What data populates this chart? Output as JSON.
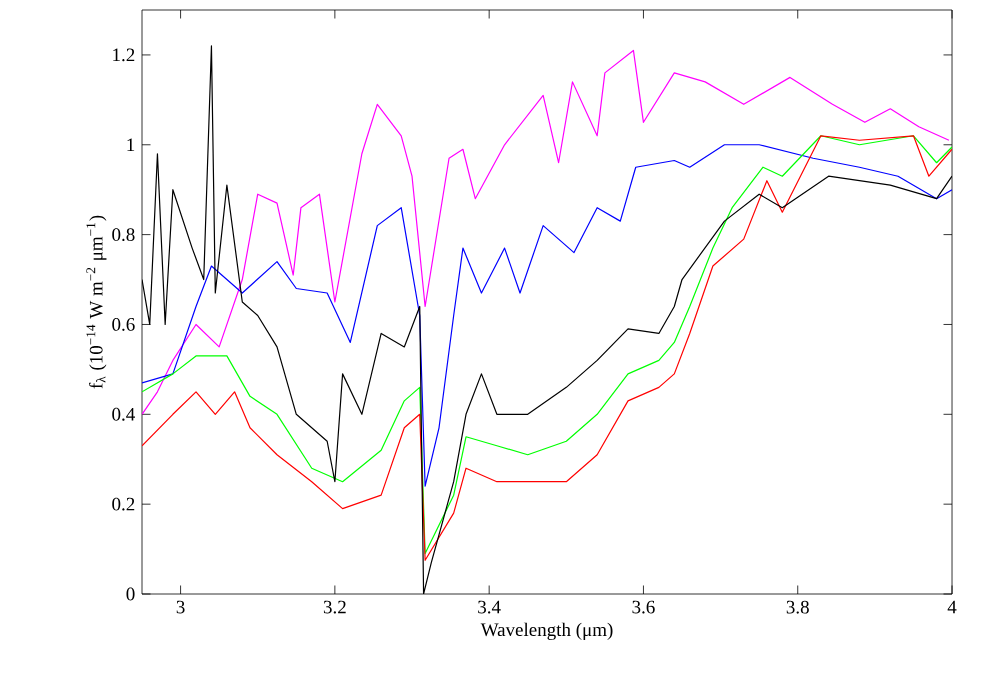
{
  "chart_data": {
    "type": "line",
    "xlabel": "Wavelength (μm)",
    "ylabel": "f$_{λ}$ (10$^{−14}$ W m$^{−2}$ μm$^{−1}$)",
    "xlim": [
      2.95,
      4
    ],
    "ylim": [
      0,
      1.3
    ],
    "xticks": [
      3,
      3.2,
      3.4,
      3.6,
      3.8,
      4
    ],
    "yticks": [
      0,
      0.2,
      0.4,
      0.6,
      0.8,
      1,
      1.2
    ],
    "grid": false,
    "legend": false,
    "marker": "none",
    "line_style": "solid",
    "series": [
      {
        "color": "#ff00ff",
        "x": [
          2.95,
          2.97,
          2.99,
          3.02,
          3.05,
          3.08,
          3.1,
          3.125,
          3.146,
          3.156,
          3.18,
          3.2,
          3.235,
          3.255,
          3.286,
          3.3,
          3.317,
          3.348,
          3.366,
          3.382,
          3.42,
          3.47,
          3.49,
          3.508,
          3.54,
          3.55,
          3.587,
          3.6,
          3.64,
          3.68,
          3.73,
          3.79,
          3.845,
          3.887,
          3.92,
          3.957,
          3.996
        ],
        "values": [
          0.4,
          0.45,
          0.52,
          0.6,
          0.55,
          0.7,
          0.89,
          0.87,
          0.71,
          0.86,
          0.89,
          0.65,
          0.98,
          1.09,
          1.02,
          0.93,
          0.64,
          0.97,
          0.99,
          0.88,
          1.0,
          1.11,
          0.96,
          1.14,
          1.02,
          1.16,
          1.21,
          1.05,
          1.16,
          1.14,
          1.09,
          1.15,
          1.09,
          1.05,
          1.08,
          1.04,
          1.01
        ]
      },
      {
        "color": "#0000ff",
        "x": [
          2.95,
          2.99,
          3.02,
          3.04,
          3.06,
          3.08,
          3.125,
          3.15,
          3.19,
          3.22,
          3.255,
          3.286,
          3.31,
          3.317,
          3.335,
          3.354,
          3.366,
          3.39,
          3.42,
          3.44,
          3.47,
          3.51,
          3.54,
          3.57,
          3.59,
          3.64,
          3.66,
          3.705,
          3.75,
          3.82,
          3.88,
          3.93,
          3.98,
          4.0
        ],
        "values": [
          0.47,
          0.49,
          0.64,
          0.73,
          0.7,
          0.67,
          0.74,
          0.68,
          0.67,
          0.56,
          0.82,
          0.86,
          0.62,
          0.24,
          0.37,
          0.62,
          0.77,
          0.67,
          0.77,
          0.67,
          0.82,
          0.76,
          0.86,
          0.83,
          0.95,
          0.965,
          0.95,
          1.0,
          1.0,
          0.97,
          0.95,
          0.93,
          0.88,
          0.9
        ]
      },
      {
        "color": "#00ff00",
        "x": [
          2.95,
          2.99,
          3.02,
          3.06,
          3.09,
          3.125,
          3.17,
          3.21,
          3.26,
          3.29,
          3.31,
          3.317,
          3.354,
          3.37,
          3.41,
          3.45,
          3.5,
          3.54,
          3.58,
          3.62,
          3.64,
          3.66,
          3.69,
          3.715,
          3.755,
          3.78,
          3.83,
          3.88,
          3.95,
          3.98,
          4.0
        ],
        "values": [
          0.45,
          0.49,
          0.53,
          0.53,
          0.44,
          0.4,
          0.28,
          0.25,
          0.32,
          0.43,
          0.46,
          0.09,
          0.22,
          0.35,
          0.33,
          0.31,
          0.34,
          0.4,
          0.49,
          0.52,
          0.56,
          0.64,
          0.77,
          0.86,
          0.95,
          0.93,
          1.02,
          1.0,
          1.02,
          0.96,
          0.995
        ]
      },
      {
        "color": "#ff0000",
        "x": [
          2.95,
          2.99,
          3.02,
          3.045,
          3.07,
          3.09,
          3.125,
          3.17,
          3.21,
          3.26,
          3.29,
          3.31,
          3.317,
          3.354,
          3.37,
          3.41,
          3.45,
          3.5,
          3.54,
          3.58,
          3.62,
          3.64,
          3.66,
          3.69,
          3.73,
          3.76,
          3.78,
          3.83,
          3.88,
          3.95,
          3.97,
          4.0
        ],
        "values": [
          0.33,
          0.4,
          0.45,
          0.4,
          0.45,
          0.37,
          0.31,
          0.25,
          0.19,
          0.22,
          0.37,
          0.4,
          0.075,
          0.18,
          0.28,
          0.25,
          0.25,
          0.25,
          0.31,
          0.43,
          0.46,
          0.49,
          0.58,
          0.73,
          0.79,
          0.92,
          0.85,
          1.02,
          1.01,
          1.02,
          0.93,
          0.99
        ]
      },
      {
        "color": "#000000",
        "x": [
          2.95,
          2.96,
          2.97,
          2.98,
          2.99,
          3.015,
          3.03,
          3.04,
          3.045,
          3.06,
          3.08,
          3.1,
          3.125,
          3.15,
          3.19,
          3.2,
          3.21,
          3.235,
          3.26,
          3.29,
          3.31,
          3.315,
          3.325,
          3.354,
          3.37,
          3.39,
          3.41,
          3.45,
          3.5,
          3.54,
          3.58,
          3.62,
          3.64,
          3.65,
          3.705,
          3.75,
          3.78,
          3.84,
          3.88,
          3.92,
          3.98,
          4.0
        ],
        "values": [
          0.7,
          0.6,
          0.98,
          0.6,
          0.9,
          0.77,
          0.7,
          1.22,
          0.67,
          0.91,
          0.65,
          0.62,
          0.55,
          0.4,
          0.34,
          0.25,
          0.49,
          0.4,
          0.58,
          0.55,
          0.64,
          0.0,
          0.07,
          0.25,
          0.4,
          0.49,
          0.4,
          0.4,
          0.46,
          0.52,
          0.59,
          0.58,
          0.64,
          0.7,
          0.83,
          0.89,
          0.86,
          0.93,
          0.92,
          0.91,
          0.88,
          0.93
        ]
      }
    ]
  }
}
